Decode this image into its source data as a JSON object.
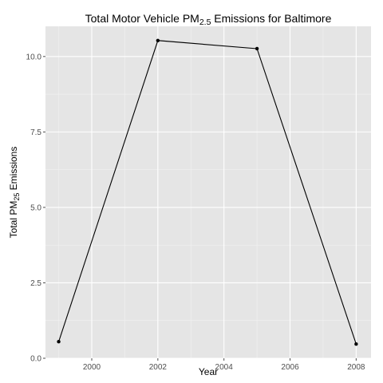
{
  "chart_data": {
    "type": "line",
    "title": {
      "prefix": "Total Motor Vehicle PM",
      "subscript": "2.5",
      "suffix": " Emissions for Baltimore"
    },
    "xlabel": "Year",
    "ylabel": {
      "prefix": "Total PM",
      "subscript": "25",
      "suffix": " Emissions"
    },
    "x": [
      1999,
      2002,
      2005,
      2008
    ],
    "series": [
      {
        "values": [
          0.55,
          10.53,
          10.26,
          0.47
        ]
      }
    ],
    "xlim": [
      1998.6,
      2008.45
    ],
    "ylim": [
      0,
      11.0
    ],
    "xticks": [
      2000,
      2002,
      2004,
      2006,
      2008
    ],
    "xtick_labels": [
      "2000",
      "2002",
      "2004",
      "2006",
      "2008"
    ],
    "yticks": [
      0,
      2.5,
      5,
      7.5,
      10
    ],
    "ytick_labels": [
      "0.0",
      "2.5",
      "5.0",
      "7.5",
      "10.0"
    ],
    "grid": true,
    "colors": {
      "panel": "#e5e5e5",
      "grid_major": "#ffffff",
      "grid_minor": "#f2f2f2",
      "line": "#000000",
      "tick_text": "#4d4d4d"
    }
  }
}
